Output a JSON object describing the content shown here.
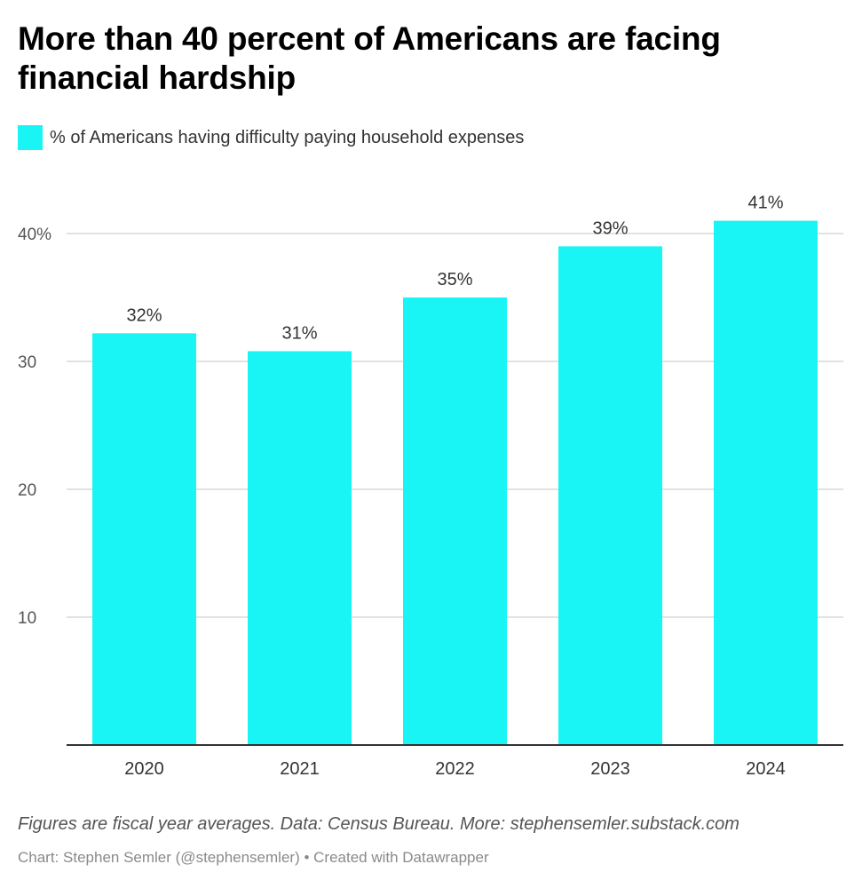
{
  "title": "More than 40 percent of Americans are facing financial hardship",
  "colors": {
    "bar": "#19f5f5",
    "gridline": "#d9d9d9",
    "baseline": "#333333",
    "tick_text": "#555555",
    "label_text": "#333333"
  },
  "legend": {
    "label": "% of Americans having difficulty paying household expenses"
  },
  "chart_data": {
    "type": "bar",
    "title": "More than 40 percent of Americans are facing financial hardship",
    "xlabel": "",
    "ylabel": "",
    "categories": [
      "2020",
      "2021",
      "2022",
      "2023",
      "2024"
    ],
    "series": [
      {
        "name": "% of Americans having difficulty paying household expenses",
        "values": [
          32.2,
          30.8,
          35.0,
          39.0,
          41.0
        ],
        "data_labels": [
          "32%",
          "31%",
          "35%",
          "39%",
          "41%"
        ]
      }
    ],
    "ylim": [
      0,
      43
    ],
    "yticks": [
      10,
      20,
      30,
      40
    ],
    "ytick_labels": [
      "10",
      "20",
      "30",
      "40%"
    ],
    "grid": true,
    "legend_position": "top-left"
  },
  "footer": {
    "notes": "Figures are fiscal year averages. Data: Census Bureau. More: stephensemler.substack.com",
    "credit": "Chart: Stephen Semler (@stephensemler) • Created with Datawrapper"
  }
}
